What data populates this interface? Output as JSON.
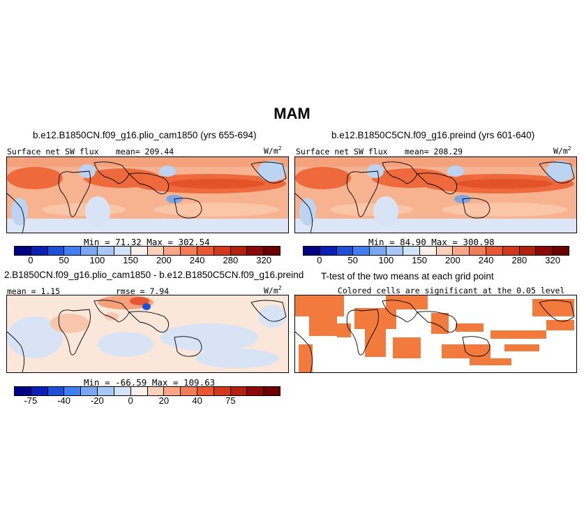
{
  "page": {
    "title": "MAM"
  },
  "panels": {
    "top_left": {
      "title": "b.e12.B1850CN.f09_g16.plio_cam1850 (yrs 655-694)",
      "variable": "Surface net SW flux",
      "mean_label": "mean= 209.44",
      "units": "W/m",
      "units_exp": "2",
      "stats": "Min =   71.32  Max = 302.54"
    },
    "top_right": {
      "title": "b.e12.B1850C5CN.f09_g16.preind (yrs 601-640)",
      "variable": "Surface net SW flux",
      "mean_label": "mean= 208.29",
      "units": "W/m",
      "units_exp": "2",
      "stats": "Min =   84.90  Max = 300.98"
    },
    "bottom_left": {
      "title": "2.B1850CN.f09_g16.plio_cam1850 - b.e12.B1850C5CN.f09_g16.preind",
      "mean_label": "mean =    1.15",
      "rmse_label": "rmse =    7.94",
      "units": "W/m",
      "units_exp": "2",
      "stats": "Min = -66.59  Max = 109.63"
    },
    "bottom_right": {
      "title": "T-test of the two means at each grid point",
      "subtitle": "Colored cells are significant at the 0.05 level"
    }
  },
  "colorbars": {
    "absolute": {
      "colors": [
        "#000080",
        "#0a1fb4",
        "#1e4fd8",
        "#3f7ff0",
        "#7aa7f4",
        "#a8c6f6",
        "#d2e2f8",
        "#f8f0ea",
        "#fbd0b8",
        "#f8a685",
        "#f27d55",
        "#e85730",
        "#d3381c",
        "#b4200e",
        "#8b0a05",
        "#6a0000"
      ],
      "labels": [
        "0",
        "50",
        "100",
        "150",
        "200",
        "240",
        "280",
        "320"
      ]
    },
    "difference": {
      "colors": [
        "#000080",
        "#0a1fb4",
        "#1e4fd8",
        "#3f7ff0",
        "#7aa7f4",
        "#a8c6f6",
        "#d2e2f8",
        "#f8f0ea",
        "#fbd0b8",
        "#f8a685",
        "#f27d55",
        "#e85730",
        "#d3381c",
        "#b4200e",
        "#8b0a05",
        "#6a0000"
      ],
      "labels": [
        "-75",
        "-40",
        "-20",
        "0",
        "20",
        "40",
        "75"
      ]
    }
  },
  "map_colors": {
    "ocean_high": "#ee6a3c",
    "ocean_mid": "#f59a72",
    "ocean_low": "#fbc6a8",
    "cool": "#bcd3f2",
    "cool_dark": "#7ea6e6",
    "neutral": "#fbe6da",
    "significant": "#f27a3c"
  }
}
